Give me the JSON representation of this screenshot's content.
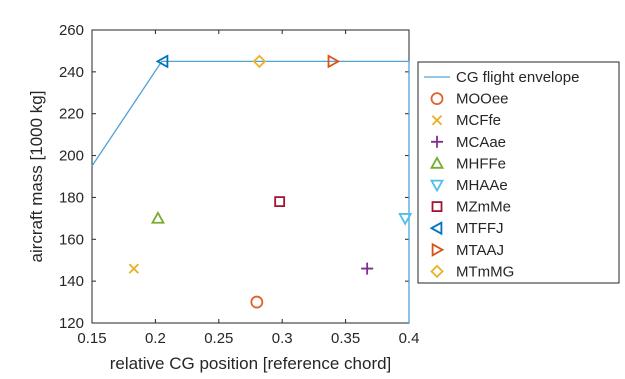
{
  "chart_data": {
    "type": "scatter",
    "xlabel": "relative CG position [reference chord]",
    "ylabel": "aircraft mass [1000 kg]",
    "xlim": [
      0.15,
      0.4
    ],
    "ylim": [
      120,
      260
    ],
    "xticks": [
      0.15,
      0.2,
      0.25,
      0.3,
      0.35,
      0.4
    ],
    "xtick_labels": [
      "0.15",
      "0.2",
      "0.25",
      "0.3",
      "0.35",
      "0.4"
    ],
    "yticks": [
      120,
      140,
      160,
      180,
      200,
      220,
      240,
      260
    ],
    "ytick_labels": [
      "120",
      "140",
      "160",
      "180",
      "200",
      "220",
      "240",
      "260"
    ],
    "grid": false,
    "legend_position": "right",
    "envelope": {
      "name": "CG flight envelope",
      "color": "#4fa3d8",
      "x": [
        0.15,
        0.205,
        0.4,
        0.4
      ],
      "y": [
        195,
        245,
        245,
        120
      ]
    },
    "series": [
      {
        "name": "MOOee",
        "marker": "circle",
        "color": "#e0622a",
        "x": 0.28,
        "y": 130
      },
      {
        "name": "MCFfe",
        "marker": "x",
        "color": "#e6b022",
        "x": 0.183,
        "y": 146
      },
      {
        "name": "MCAae",
        "marker": "plus",
        "color": "#7e2f8e",
        "x": 0.367,
        "y": 146
      },
      {
        "name": "MHFFe",
        "marker": "triangle-up",
        "color": "#77ac30",
        "x": 0.202,
        "y": 170
      },
      {
        "name": "MHAAe",
        "marker": "triangle-down",
        "color": "#4dbeee",
        "x": 0.397,
        "y": 170
      },
      {
        "name": "MZmMe",
        "marker": "square",
        "color": "#a2142f",
        "x": 0.298,
        "y": 178
      },
      {
        "name": "MTFFJ",
        "marker": "triangle-left",
        "color": "#0072bd",
        "x": 0.206,
        "y": 245
      },
      {
        "name": "MTAAJ",
        "marker": "triangle-right",
        "color": "#d95319",
        "x": 0.34,
        "y": 245
      },
      {
        "name": "MTmMG",
        "marker": "diamond",
        "color": "#edb120",
        "x": 0.282,
        "y": 245
      }
    ]
  }
}
